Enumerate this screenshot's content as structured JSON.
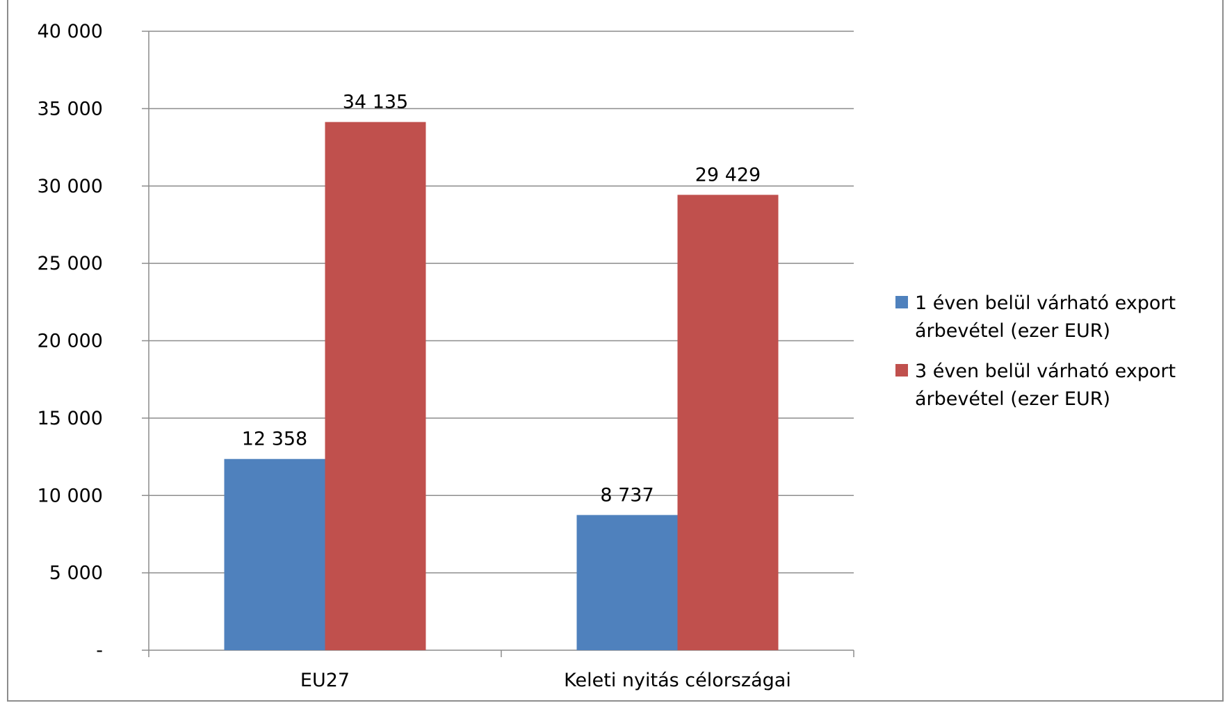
{
  "chart_data": {
    "type": "bar",
    "title": "",
    "xlabel": "",
    "ylabel": "",
    "categories": [
      "EU27",
      "Keleti nyitás célországai"
    ],
    "series": [
      {
        "name": "1 éven belül várható export árbevétel (ezer EUR)",
        "color": "#4F81BD",
        "values": [
          12358,
          8737
        ]
      },
      {
        "name": "3 éven belül várható export árbevétel (ezer EUR)",
        "color": "#C0504D",
        "values": [
          34135,
          29429
        ]
      }
    ],
    "value_labels": [
      [
        "12 358",
        "8 737"
      ],
      [
        "34 135",
        "29 429"
      ]
    ],
    "ylim": [
      0,
      40000
    ],
    "y_ticks": [
      {
        "value": 0,
        "label": "-"
      },
      {
        "value": 5000,
        "label": "5 000"
      },
      {
        "value": 10000,
        "label": "10 000"
      },
      {
        "value": 15000,
        "label": "15 000"
      },
      {
        "value": 20000,
        "label": "20 000"
      },
      {
        "value": 25000,
        "label": "25 000"
      },
      {
        "value": 30000,
        "label": "30 000"
      },
      {
        "value": 35000,
        "label": "35 000"
      },
      {
        "value": 40000,
        "label": "40 000"
      }
    ],
    "legend_lines": [
      [
        "1 éven belül várható export",
        "árbevétel (ezer EUR)"
      ],
      [
        "3 éven belül várható export",
        "árbevétel (ezer EUR)"
      ]
    ],
    "grid": true,
    "legend_position": "right"
  }
}
